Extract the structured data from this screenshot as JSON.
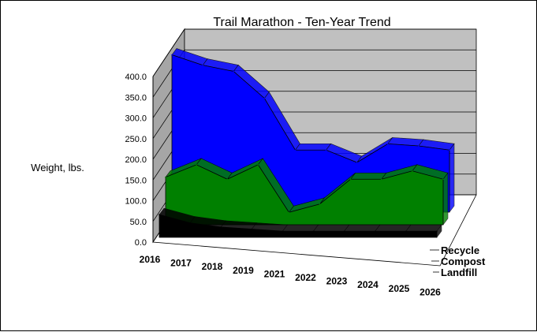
{
  "chart_data": {
    "type": "area",
    "variant": "3d-stacked-depth",
    "title": "Trail Marathon - Ten-Year Trend",
    "ylabel": "Weight, lbs.",
    "xlabel": "",
    "ylim": [
      0,
      400
    ],
    "yticks": [
      "0.0",
      "50.0",
      "100.0",
      "150.0",
      "200.0",
      "250.0",
      "300.0",
      "350.0",
      "400.0"
    ],
    "categories": [
      "2016",
      "2017",
      "2018",
      "2019",
      "2021",
      "2022",
      "2023",
      "2024",
      "2025",
      "2026"
    ],
    "series": [
      {
        "name": "Landfill",
        "color": "#000000",
        "values": [
          55,
          35,
          25,
          20,
          15,
          15,
          15,
          15,
          15,
          15
        ]
      },
      {
        "name": "Compost",
        "color": "#008000",
        "values": [
          115,
          145,
          110,
          145,
          30,
          50,
          110,
          110,
          130,
          110
        ]
      },
      {
        "name": "Recycle",
        "color": "#0000FF",
        "values": [
          380,
          355,
          340,
          275,
          150,
          150,
          120,
          165,
          160,
          150
        ]
      }
    ],
    "grid": true,
    "wall_color": "#C0C0C0"
  }
}
